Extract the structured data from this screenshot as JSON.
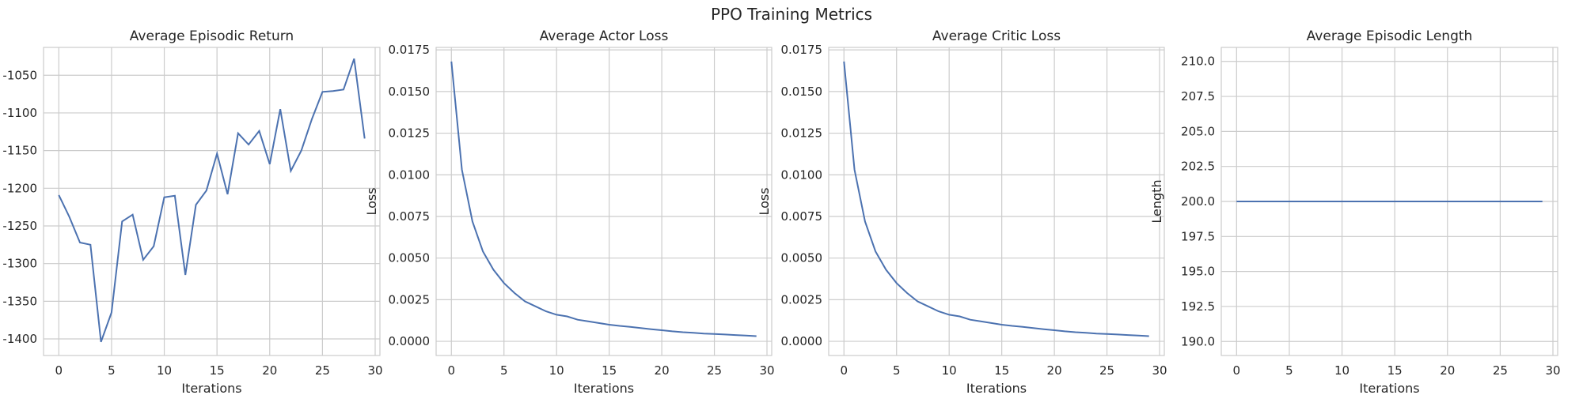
{
  "figure": {
    "title": "PPO Training Metrics"
  },
  "colors": {
    "line": "#4c72b0",
    "grid": "#cccccc",
    "text": "#262626"
  },
  "chart_data": [
    {
      "type": "line",
      "title": "Average Episodic Return",
      "xlabel": "Iterations",
      "ylabel": "",
      "xlim": [
        -1.45,
        30.45
      ],
      "ylim": [
        -1422,
        -1013
      ],
      "xticks": [
        0,
        5,
        10,
        15,
        20,
        25,
        30
      ],
      "xtick_labels": [
        "0",
        "5",
        "10",
        "15",
        "20",
        "25",
        "30"
      ],
      "yticks": [
        -1050,
        -1100,
        -1150,
        -1200,
        -1250,
        -1300,
        -1350,
        -1400
      ],
      "ytick_labels": [
        "-1050",
        "-1100",
        "-1150",
        "-1200",
        "-1250",
        "-1300",
        "-1350",
        "-1400"
      ],
      "grid": true,
      "x": [
        0,
        1,
        2,
        3,
        4,
        5,
        6,
        7,
        8,
        9,
        10,
        11,
        12,
        13,
        14,
        15,
        16,
        17,
        18,
        19,
        20,
        21,
        22,
        23,
        24,
        25,
        26,
        27,
        28,
        29
      ],
      "y": [
        -1209,
        -1238,
        -1272,
        -1275,
        -1404,
        -1365,
        -1244,
        -1235,
        -1295,
        -1277,
        -1212,
        -1210,
        -1315,
        -1222,
        -1203,
        -1154,
        -1208,
        -1127,
        -1142,
        -1124,
        -1168,
        -1095,
        -1177,
        -1150,
        -1108,
        -1072,
        -1071,
        -1069,
        -1028,
        -1134
      ]
    },
    {
      "type": "line",
      "title": "Average Actor Loss",
      "xlabel": "Iterations",
      "ylabel": "Loss",
      "xlim": [
        -1.45,
        30.45
      ],
      "ylim": [
        -0.00085,
        0.01765
      ],
      "xticks": [
        0,
        5,
        10,
        15,
        20,
        25,
        30
      ],
      "xtick_labels": [
        "0",
        "5",
        "10",
        "15",
        "20",
        "25",
        "30"
      ],
      "yticks": [
        0.0,
        0.0025,
        0.005,
        0.0075,
        0.01,
        0.0125,
        0.015,
        0.0175
      ],
      "ytick_labels": [
        "0.0000",
        "0.0025",
        "0.0050",
        "0.0075",
        "0.0100",
        "0.0125",
        "0.0150",
        "0.0175"
      ],
      "grid": true,
      "x": [
        0,
        1,
        2,
        3,
        4,
        5,
        6,
        7,
        8,
        9,
        10,
        11,
        12,
        13,
        14,
        15,
        16,
        17,
        18,
        19,
        20,
        21,
        22,
        23,
        24,
        25,
        26,
        27,
        28,
        29
      ],
      "y": [
        0.0168,
        0.0103,
        0.0072,
        0.0054,
        0.0043,
        0.0035,
        0.0029,
        0.0024,
        0.0021,
        0.0018,
        0.0016,
        0.0015,
        0.0013,
        0.0012,
        0.0011,
        0.001,
        0.00093,
        0.00087,
        0.0008,
        0.00073,
        0.00067,
        0.0006,
        0.00055,
        0.00051,
        0.00047,
        0.00044,
        0.00041,
        0.00038,
        0.00035,
        0.00031
      ]
    },
    {
      "type": "line",
      "title": "Average Critic Loss",
      "xlabel": "Iterations",
      "ylabel": "Loss",
      "xlim": [
        -1.45,
        30.45
      ],
      "ylim": [
        -0.00085,
        0.01765
      ],
      "xticks": [
        0,
        5,
        10,
        15,
        20,
        25,
        30
      ],
      "xtick_labels": [
        "0",
        "5",
        "10",
        "15",
        "20",
        "25",
        "30"
      ],
      "yticks": [
        0.0,
        0.0025,
        0.005,
        0.0075,
        0.01,
        0.0125,
        0.015,
        0.0175
      ],
      "ytick_labels": [
        "0.0000",
        "0.0025",
        "0.0050",
        "0.0075",
        "0.0100",
        "0.0125",
        "0.0150",
        "0.0175"
      ],
      "grid": true,
      "x": [
        0,
        1,
        2,
        3,
        4,
        5,
        6,
        7,
        8,
        9,
        10,
        11,
        12,
        13,
        14,
        15,
        16,
        17,
        18,
        19,
        20,
        21,
        22,
        23,
        24,
        25,
        26,
        27,
        28,
        29
      ],
      "y": [
        0.0168,
        0.0103,
        0.0072,
        0.0054,
        0.0043,
        0.0035,
        0.0029,
        0.0024,
        0.0021,
        0.0018,
        0.0016,
        0.0015,
        0.0013,
        0.0012,
        0.0011,
        0.001,
        0.00093,
        0.00087,
        0.0008,
        0.00073,
        0.00067,
        0.0006,
        0.00055,
        0.00051,
        0.00047,
        0.00044,
        0.00041,
        0.00038,
        0.00035,
        0.00031
      ]
    },
    {
      "type": "line",
      "title": "Average Episodic Length",
      "xlabel": "Iterations",
      "ylabel": "Length",
      "xlim": [
        -1.45,
        30.45
      ],
      "ylim": [
        189,
        211
      ],
      "xticks": [
        0,
        5,
        10,
        15,
        20,
        25,
        30
      ],
      "xtick_labels": [
        "0",
        "5",
        "10",
        "15",
        "20",
        "25",
        "30"
      ],
      "yticks": [
        190.0,
        192.5,
        195.0,
        197.5,
        200.0,
        202.5,
        205.0,
        207.5,
        210.0
      ],
      "ytick_labels": [
        "190.0",
        "192.5",
        "195.0",
        "197.5",
        "200.0",
        "202.5",
        "205.0",
        "207.5",
        "210.0"
      ],
      "grid": true,
      "x": [
        0,
        1,
        2,
        3,
        4,
        5,
        6,
        7,
        8,
        9,
        10,
        11,
        12,
        13,
        14,
        15,
        16,
        17,
        18,
        19,
        20,
        21,
        22,
        23,
        24,
        25,
        26,
        27,
        28,
        29
      ],
      "y": [
        200,
        200,
        200,
        200,
        200,
        200,
        200,
        200,
        200,
        200,
        200,
        200,
        200,
        200,
        200,
        200,
        200,
        200,
        200,
        200,
        200,
        200,
        200,
        200,
        200,
        200,
        200,
        200,
        200,
        200
      ]
    }
  ]
}
